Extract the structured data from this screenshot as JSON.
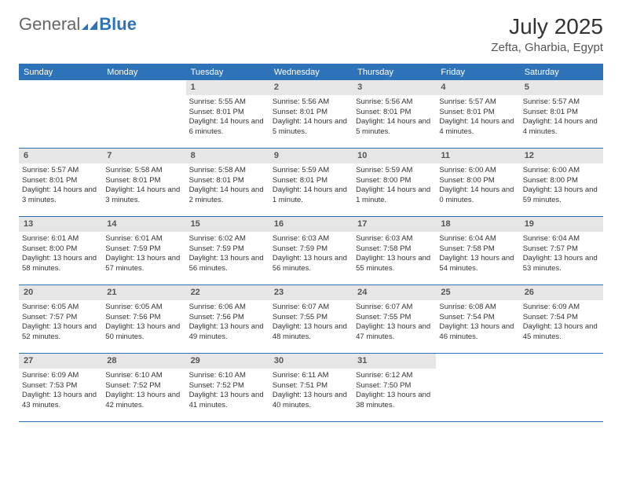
{
  "brand": {
    "general": "General",
    "blue": "Blue"
  },
  "title": "July 2025",
  "location": "Zefta, Gharbia, Egypt",
  "colors": {
    "header_bg": "#2e72b8",
    "header_text": "#ffffff",
    "daynum_bg": "#e6e6e6",
    "rule": "#2e72b8",
    "text": "#333333",
    "muted": "#555555"
  },
  "weekdays": [
    "Sunday",
    "Monday",
    "Tuesday",
    "Wednesday",
    "Thursday",
    "Friday",
    "Saturday"
  ],
  "layout": {
    "first_weekday_index": 2,
    "days_in_month": 31
  },
  "days": [
    {
      "n": 1,
      "sunrise": "5:55 AM",
      "sunset": "8:01 PM",
      "daylight": "14 hours and 6 minutes."
    },
    {
      "n": 2,
      "sunrise": "5:56 AM",
      "sunset": "8:01 PM",
      "daylight": "14 hours and 5 minutes."
    },
    {
      "n": 3,
      "sunrise": "5:56 AM",
      "sunset": "8:01 PM",
      "daylight": "14 hours and 5 minutes."
    },
    {
      "n": 4,
      "sunrise": "5:57 AM",
      "sunset": "8:01 PM",
      "daylight": "14 hours and 4 minutes."
    },
    {
      "n": 5,
      "sunrise": "5:57 AM",
      "sunset": "8:01 PM",
      "daylight": "14 hours and 4 minutes."
    },
    {
      "n": 6,
      "sunrise": "5:57 AM",
      "sunset": "8:01 PM",
      "daylight": "14 hours and 3 minutes."
    },
    {
      "n": 7,
      "sunrise": "5:58 AM",
      "sunset": "8:01 PM",
      "daylight": "14 hours and 3 minutes."
    },
    {
      "n": 8,
      "sunrise": "5:58 AM",
      "sunset": "8:01 PM",
      "daylight": "14 hours and 2 minutes."
    },
    {
      "n": 9,
      "sunrise": "5:59 AM",
      "sunset": "8:01 PM",
      "daylight": "14 hours and 1 minute."
    },
    {
      "n": 10,
      "sunrise": "5:59 AM",
      "sunset": "8:00 PM",
      "daylight": "14 hours and 1 minute."
    },
    {
      "n": 11,
      "sunrise": "6:00 AM",
      "sunset": "8:00 PM",
      "daylight": "14 hours and 0 minutes."
    },
    {
      "n": 12,
      "sunrise": "6:00 AM",
      "sunset": "8:00 PM",
      "daylight": "13 hours and 59 minutes."
    },
    {
      "n": 13,
      "sunrise": "6:01 AM",
      "sunset": "8:00 PM",
      "daylight": "13 hours and 58 minutes."
    },
    {
      "n": 14,
      "sunrise": "6:01 AM",
      "sunset": "7:59 PM",
      "daylight": "13 hours and 57 minutes."
    },
    {
      "n": 15,
      "sunrise": "6:02 AM",
      "sunset": "7:59 PM",
      "daylight": "13 hours and 56 minutes."
    },
    {
      "n": 16,
      "sunrise": "6:03 AM",
      "sunset": "7:59 PM",
      "daylight": "13 hours and 56 minutes."
    },
    {
      "n": 17,
      "sunrise": "6:03 AM",
      "sunset": "7:58 PM",
      "daylight": "13 hours and 55 minutes."
    },
    {
      "n": 18,
      "sunrise": "6:04 AM",
      "sunset": "7:58 PM",
      "daylight": "13 hours and 54 minutes."
    },
    {
      "n": 19,
      "sunrise": "6:04 AM",
      "sunset": "7:57 PM",
      "daylight": "13 hours and 53 minutes."
    },
    {
      "n": 20,
      "sunrise": "6:05 AM",
      "sunset": "7:57 PM",
      "daylight": "13 hours and 52 minutes."
    },
    {
      "n": 21,
      "sunrise": "6:05 AM",
      "sunset": "7:56 PM",
      "daylight": "13 hours and 50 minutes."
    },
    {
      "n": 22,
      "sunrise": "6:06 AM",
      "sunset": "7:56 PM",
      "daylight": "13 hours and 49 minutes."
    },
    {
      "n": 23,
      "sunrise": "6:07 AM",
      "sunset": "7:55 PM",
      "daylight": "13 hours and 48 minutes."
    },
    {
      "n": 24,
      "sunrise": "6:07 AM",
      "sunset": "7:55 PM",
      "daylight": "13 hours and 47 minutes."
    },
    {
      "n": 25,
      "sunrise": "6:08 AM",
      "sunset": "7:54 PM",
      "daylight": "13 hours and 46 minutes."
    },
    {
      "n": 26,
      "sunrise": "6:09 AM",
      "sunset": "7:54 PM",
      "daylight": "13 hours and 45 minutes."
    },
    {
      "n": 27,
      "sunrise": "6:09 AM",
      "sunset": "7:53 PM",
      "daylight": "13 hours and 43 minutes."
    },
    {
      "n": 28,
      "sunrise": "6:10 AM",
      "sunset": "7:52 PM",
      "daylight": "13 hours and 42 minutes."
    },
    {
      "n": 29,
      "sunrise": "6:10 AM",
      "sunset": "7:52 PM",
      "daylight": "13 hours and 41 minutes."
    },
    {
      "n": 30,
      "sunrise": "6:11 AM",
      "sunset": "7:51 PM",
      "daylight": "13 hours and 40 minutes."
    },
    {
      "n": 31,
      "sunrise": "6:12 AM",
      "sunset": "7:50 PM",
      "daylight": "13 hours and 38 minutes."
    }
  ],
  "labels": {
    "sunrise": "Sunrise:",
    "sunset": "Sunset:",
    "daylight": "Daylight:"
  }
}
